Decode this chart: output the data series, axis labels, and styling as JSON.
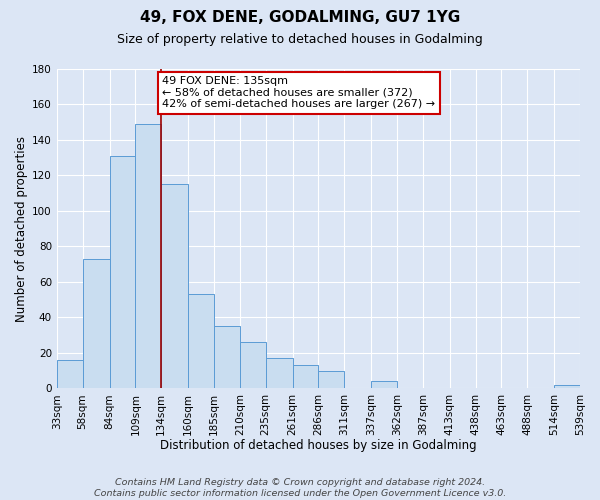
{
  "title": "49, FOX DENE, GODALMING, GU7 1YG",
  "subtitle": "Size of property relative to detached houses in Godalming",
  "xlabel": "Distribution of detached houses by size in Godalming",
  "ylabel": "Number of detached properties",
  "footer_lines": [
    "Contains HM Land Registry data © Crown copyright and database right 2024.",
    "Contains public sector information licensed under the Open Government Licence v3.0."
  ],
  "bin_labels": [
    "33sqm",
    "58sqm",
    "84sqm",
    "109sqm",
    "134sqm",
    "160sqm",
    "185sqm",
    "210sqm",
    "235sqm",
    "261sqm",
    "286sqm",
    "311sqm",
    "337sqm",
    "362sqm",
    "387sqm",
    "413sqm",
    "438sqm",
    "463sqm",
    "488sqm",
    "514sqm",
    "539sqm"
  ],
  "bar_values": [
    16,
    73,
    131,
    149,
    115,
    53,
    35,
    26,
    17,
    13,
    10,
    0,
    4,
    0,
    0,
    0,
    0,
    0,
    0,
    2
  ],
  "bar_color": "#c9ddf0",
  "bar_edge_color": "#5b9bd5",
  "property_line_x": 134,
  "property_line_color": "#9b0000",
  "annotation_text": "49 FOX DENE: 135sqm\n← 58% of detached houses are smaller (372)\n42% of semi-detached houses are larger (267) →",
  "annotation_box_color": "#ffffff",
  "annotation_box_edge_color": "#cc0000",
  "ylim": [
    0,
    180
  ],
  "bin_edges": [
    33,
    58,
    84,
    109,
    134,
    160,
    185,
    210,
    235,
    261,
    286,
    311,
    337,
    362,
    387,
    413,
    438,
    463,
    488,
    514,
    539
  ],
  "background_color": "#dce6f5",
  "grid_color": "#ffffff",
  "title_fontsize": 11,
  "subtitle_fontsize": 9,
  "axis_label_fontsize": 8.5,
  "tick_fontsize": 7.5,
  "footer_fontsize": 6.8,
  "annotation_fontsize": 8,
  "ytick_values": [
    0,
    20,
    40,
    60,
    80,
    100,
    120,
    140,
    160,
    180
  ]
}
